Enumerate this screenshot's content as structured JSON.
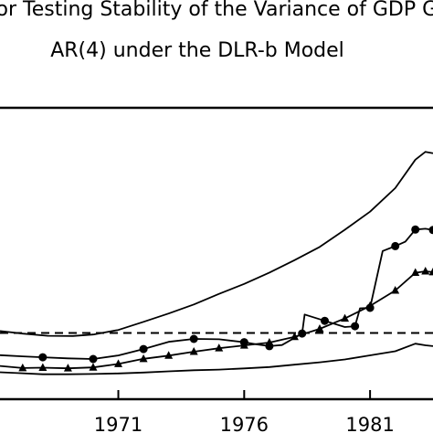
{
  "chart_data": {
    "type": "line",
    "title_lines": [
      "for Testing Stability of the Variance of GDP Gr",
      "AR(4) under the DLR-b Model"
    ],
    "xlabel": "",
    "ylabel": "",
    "x_ticks": [
      1971,
      1976,
      1981
    ],
    "xlim": [
      1966.3,
      1983.5
    ],
    "ylim": [
      0.0,
      1.0
    ],
    "legend": "none",
    "grid": false,
    "reference_line": {
      "y": 0.2273,
      "style": "dashed"
    },
    "series": [
      {
        "marker": "none",
        "points": [
          [
            1966.3,
            0.234
          ],
          [
            1967.2,
            0.225
          ],
          [
            1968.2,
            0.2175
          ],
          [
            1969.2,
            0.217
          ],
          [
            1970.0,
            0.222
          ],
          [
            1971.0,
            0.2375
          ],
          [
            1972.0,
            0.2655
          ],
          [
            1973.0,
            0.294
          ],
          [
            1974.0,
            0.325
          ],
          [
            1975.0,
            0.3615
          ],
          [
            1976.0,
            0.3955
          ],
          [
            1977.0,
            0.4345
          ],
          [
            1978.0,
            0.477
          ],
          [
            1979.0,
            0.5225
          ],
          [
            1980.0,
            0.5815
          ],
          [
            1981.0,
            0.6435
          ],
          [
            1982.0,
            0.7245
          ],
          [
            1982.8,
            0.822
          ],
          [
            1983.2,
            0.849
          ],
          [
            1983.5,
            0.844
          ]
        ]
      },
      {
        "marker": "circle",
        "points": [
          [
            1966.3,
            0.151
          ],
          [
            1967.2,
            0.147
          ],
          [
            1968.0,
            0.144
          ],
          [
            1969.0,
            0.14
          ],
          [
            1970.0,
            0.138
          ],
          [
            1971.0,
            0.15
          ],
          [
            1972.0,
            0.172
          ],
          [
            1973.0,
            0.197
          ],
          [
            1974.0,
            0.207
          ],
          [
            1975.0,
            0.2055
          ],
          [
            1976.0,
            0.1955
          ],
          [
            1976.5,
            0.188
          ],
          [
            1977.0,
            0.182
          ],
          [
            1977.5,
            0.186
          ],
          [
            1978.3,
            0.2255
          ],
          [
            1978.4,
            0.2905
          ],
          [
            1979.2,
            0.269
          ],
          [
            1980.0,
            0.2475
          ],
          [
            1980.4,
            0.2505
          ],
          [
            1980.6,
            0.312
          ],
          [
            1981.0,
            0.3135
          ],
          [
            1981.5,
            0.5085
          ],
          [
            1982.0,
            0.5255
          ],
          [
            1982.4,
            0.5405
          ],
          [
            1982.8,
            0.582
          ],
          [
            1983.2,
            0.585
          ],
          [
            1983.5,
            0.5805
          ]
        ]
      },
      {
        "marker": "triangle",
        "points": [
          [
            1966.3,
            0.114
          ],
          [
            1967.2,
            0.107
          ],
          [
            1968.0,
            0.108
          ],
          [
            1969.0,
            0.106
          ],
          [
            1970.0,
            0.109
          ],
          [
            1971.0,
            0.121
          ],
          [
            1972.0,
            0.1385
          ],
          [
            1973.0,
            0.1495
          ],
          [
            1974.0,
            0.163
          ],
          [
            1975.0,
            0.175
          ],
          [
            1976.0,
            0.1845
          ],
          [
            1977.0,
            0.1945
          ],
          [
            1978.0,
            0.214
          ],
          [
            1979.0,
            0.2415
          ],
          [
            1980.0,
            0.277
          ],
          [
            1981.0,
            0.32
          ],
          [
            1982.0,
            0.373
          ],
          [
            1982.8,
            0.434
          ],
          [
            1983.2,
            0.439
          ],
          [
            1983.5,
            0.436
          ]
        ]
      },
      {
        "marker": "none",
        "points": [
          [
            1966.3,
            0.0925
          ],
          [
            1967.0,
            0.0895
          ],
          [
            1968.0,
            0.0855
          ],
          [
            1969.0,
            0.0855
          ],
          [
            1970.0,
            0.0865
          ],
          [
            1971.0,
            0.0885
          ],
          [
            1972.0,
            0.0915
          ],
          [
            1973.0,
            0.0955
          ],
          [
            1974.0,
            0.0995
          ],
          [
            1975.0,
            0.1015
          ],
          [
            1976.0,
            0.1055
          ],
          [
            1977.0,
            0.1105
          ],
          [
            1978.0,
            0.1185
          ],
          [
            1979.0,
            0.1265
          ],
          [
            1980.0,
            0.1365
          ],
          [
            1981.0,
            0.1505
          ],
          [
            1982.0,
            0.1645
          ],
          [
            1982.8,
            0.1905
          ],
          [
            1983.2,
            0.185
          ],
          [
            1983.5,
            0.182
          ]
        ]
      }
    ]
  }
}
